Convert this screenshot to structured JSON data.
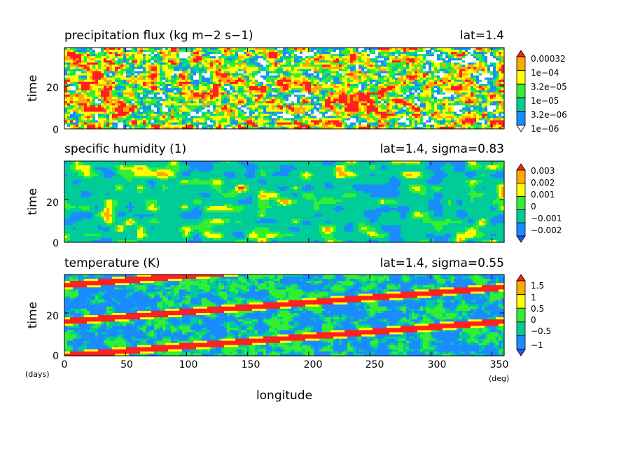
{
  "chart_data": [
    {
      "type": "heatmap",
      "title": "precipitation flux (kg m−2 s−1)",
      "location": "lat=1.4",
      "xlabel": "longitude",
      "ylabel": "time",
      "xlim": [
        0,
        360
      ],
      "ylim": [
        0,
        38
      ],
      "yticks": [
        "0",
        "20"
      ],
      "colorbar": {
        "levels": [
          "1e−06",
          "3.2e−06",
          "1e−05",
          "3.2e−05",
          "1e−04",
          "0.00032"
        ],
        "colors": [
          "#ffffff",
          "#1a8cff",
          "#00cc99",
          "#33ee33",
          "#ffff00",
          "#ffaa00",
          "#ff2020"
        ]
      },
      "pattern": "noisy"
    },
    {
      "type": "heatmap",
      "title": "specific humidity (1)",
      "location": "lat=1.4, sigma=0.83",
      "xlabel": "longitude",
      "ylabel": "time",
      "xlim": [
        0,
        360
      ],
      "ylim": [
        0,
        38
      ],
      "yticks": [
        "0",
        "20"
      ],
      "colorbar": {
        "levels": [
          "−0.002",
          "−0.001",
          "0",
          "0.001",
          "0.002",
          "0.003"
        ],
        "colors": [
          "#2255ee",
          "#1a8cff",
          "#00cc99",
          "#33ee33",
          "#ffff00",
          "#ffaa00",
          "#ff2020"
        ]
      },
      "pattern": "smooth"
    },
    {
      "type": "heatmap",
      "title": "temperature (K)",
      "location": "lat=1.4, sigma=0.55",
      "xlabel": "longitude",
      "ylabel": "time",
      "xlim": [
        0,
        360
      ],
      "ylim": [
        0,
        38
      ],
      "yticks": [
        "0",
        "20"
      ],
      "colorbar": {
        "levels": [
          "−1",
          "−0.5",
          "0",
          "0.5",
          "1",
          "1.5"
        ],
        "colors": [
          "#2255ee",
          "#1a8cff",
          "#00cc99",
          "#33ee33",
          "#ffff00",
          "#ffaa00",
          "#ff2020"
        ]
      },
      "pattern": "bands"
    }
  ],
  "axes": {
    "xticks": [
      "0",
      "50",
      "100",
      "150",
      "200",
      "250",
      "300",
      "350"
    ],
    "x_tick_values": [
      0,
      50,
      100,
      150,
      200,
      250,
      300,
      350
    ],
    "y_tick_values": [
      0,
      20
    ],
    "x_unit": "(deg)",
    "y_unit": "(days)",
    "xlabel": "longitude"
  }
}
